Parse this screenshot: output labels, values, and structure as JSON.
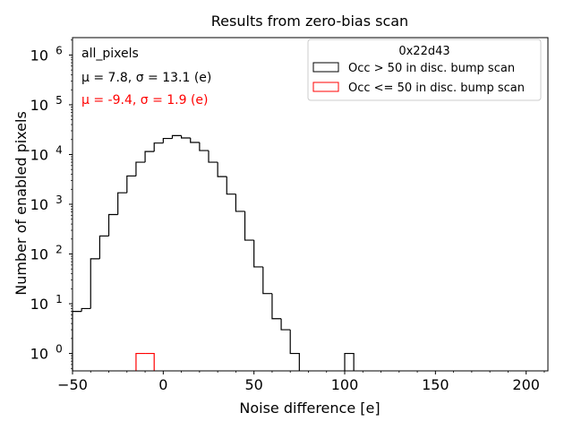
{
  "chart_data": {
    "type": "histogram",
    "title": "Results from zero-bias scan",
    "xlabel": "Noise difference [e]",
    "ylabel": "Number of enabled pixels",
    "xlim": [
      -50,
      212
    ],
    "ylim_log10": [
      -0.35,
      6.35
    ],
    "yscale": "log",
    "x_ticks": [
      -50,
      0,
      50,
      100,
      150,
      200
    ],
    "x_tick_labels": [
      "−50",
      "0",
      "50",
      "100",
      "150",
      "200"
    ],
    "y_ticks_exp": [
      0,
      1,
      2,
      3,
      4,
      5,
      6
    ],
    "y_tick_base": "10",
    "annotations": {
      "dataset": "all_pixels",
      "stats_black": "μ = 7.8, σ = 13.1 (e)",
      "stats_red": "μ = -9.4, σ = 1.9 (e)"
    },
    "legend": {
      "title": "0x22d43",
      "location": "top-right",
      "entries": [
        {
          "label": "Occ > 50 in disc. bump scan",
          "color": "#000000"
        },
        {
          "label": "Occ <= 50 in disc. bump scan",
          "color": "#ff0000"
        }
      ]
    },
    "bin_width": 5,
    "series": [
      {
        "name": "Occ > 50 in disc. bump scan",
        "color": "#000000",
        "bins": [
          {
            "x0": -50,
            "count": 7
          },
          {
            "x0": -45,
            "count": 8
          },
          {
            "x0": -40,
            "count": 80
          },
          {
            "x0": -35,
            "count": 230
          },
          {
            "x0": -30,
            "count": 620
          },
          {
            "x0": -25,
            "count": 1700
          },
          {
            "x0": -20,
            "count": 3700
          },
          {
            "x0": -15,
            "count": 7000
          },
          {
            "x0": -10,
            "count": 11500
          },
          {
            "x0": -5,
            "count": 17000
          },
          {
            "x0": 0,
            "count": 21000
          },
          {
            "x0": 5,
            "count": 24000
          },
          {
            "x0": 10,
            "count": 21500
          },
          {
            "x0": 15,
            "count": 17500
          },
          {
            "x0": 20,
            "count": 12000
          },
          {
            "x0": 25,
            "count": 7000
          },
          {
            "x0": 30,
            "count": 3600
          },
          {
            "x0": 35,
            "count": 1600
          },
          {
            "x0": 40,
            "count": 720
          },
          {
            "x0": 45,
            "count": 190
          },
          {
            "x0": 50,
            "count": 55
          },
          {
            "x0": 55,
            "count": 16
          },
          {
            "x0": 60,
            "count": 5
          },
          {
            "x0": 65,
            "count": 3
          },
          {
            "x0": 70,
            "count": 1
          },
          {
            "x0": 100,
            "count": 1
          }
        ]
      },
      {
        "name": "Occ <= 50 in disc. bump scan",
        "color": "#ff0000",
        "bins": [
          {
            "x0": -15,
            "count": 1
          },
          {
            "x0": -10,
            "count": 1
          }
        ]
      }
    ]
  }
}
